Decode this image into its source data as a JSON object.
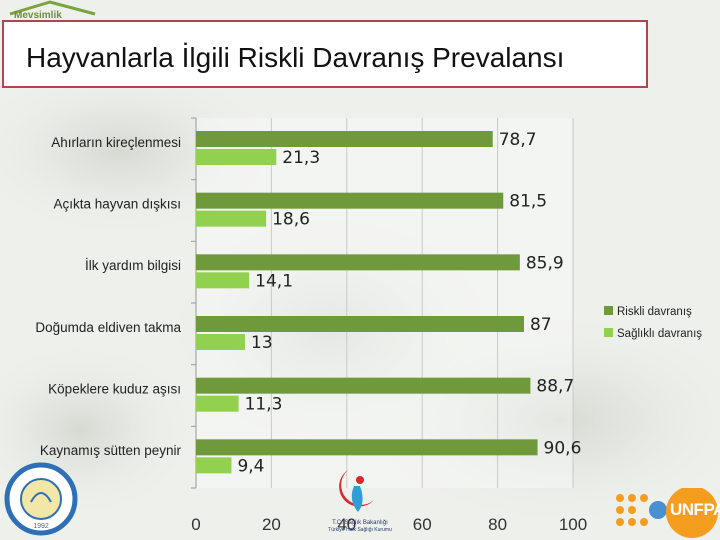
{
  "header": {
    "title": "Hayvanlarla İlgili Riskli Davranış Prevalansı",
    "logo_text": "Mevsimlik"
  },
  "colors": {
    "riskli": "#6e9a3b",
    "saglikli": "#92d050",
    "title_border": "#b0454f"
  },
  "chart_data": {
    "type": "bar",
    "orientation": "horizontal",
    "categories": [
      "Ahırların kireçlenmesi",
      "Açıkta hayvan dışkısı",
      "İlk yardım bilgisi",
      "Doğumda eldiven takma",
      "Köpeklere kuduz aşısı",
      "Kaynamış sütten peynir"
    ],
    "series": [
      {
        "name": "Riskli davranış",
        "values": [
          78.7,
          81.5,
          85.9,
          87,
          88.7,
          90.6
        ],
        "labels": [
          "78,7",
          "81,5",
          "85,9",
          "87",
          "88,7",
          "90,6"
        ]
      },
      {
        "name": "Sağlıklı davranış",
        "values": [
          21.3,
          18.6,
          14.1,
          13,
          11.3,
          9.4
        ],
        "labels": [
          "21,3",
          "18,6",
          "14,1",
          "13",
          "11,3",
          "9,4"
        ]
      }
    ],
    "xlim": [
      0,
      100
    ],
    "xticks": [
      "0",
      "20",
      "40",
      "60",
      "80",
      "100"
    ],
    "grid": true,
    "legend": "right"
  },
  "footer": {
    "ministry_text": "T.C. Sağlık Bakanlığı Türkiye Halk Sağlığı Kurumu",
    "university_year": "1992",
    "unfpa_label": "UNFPA"
  }
}
